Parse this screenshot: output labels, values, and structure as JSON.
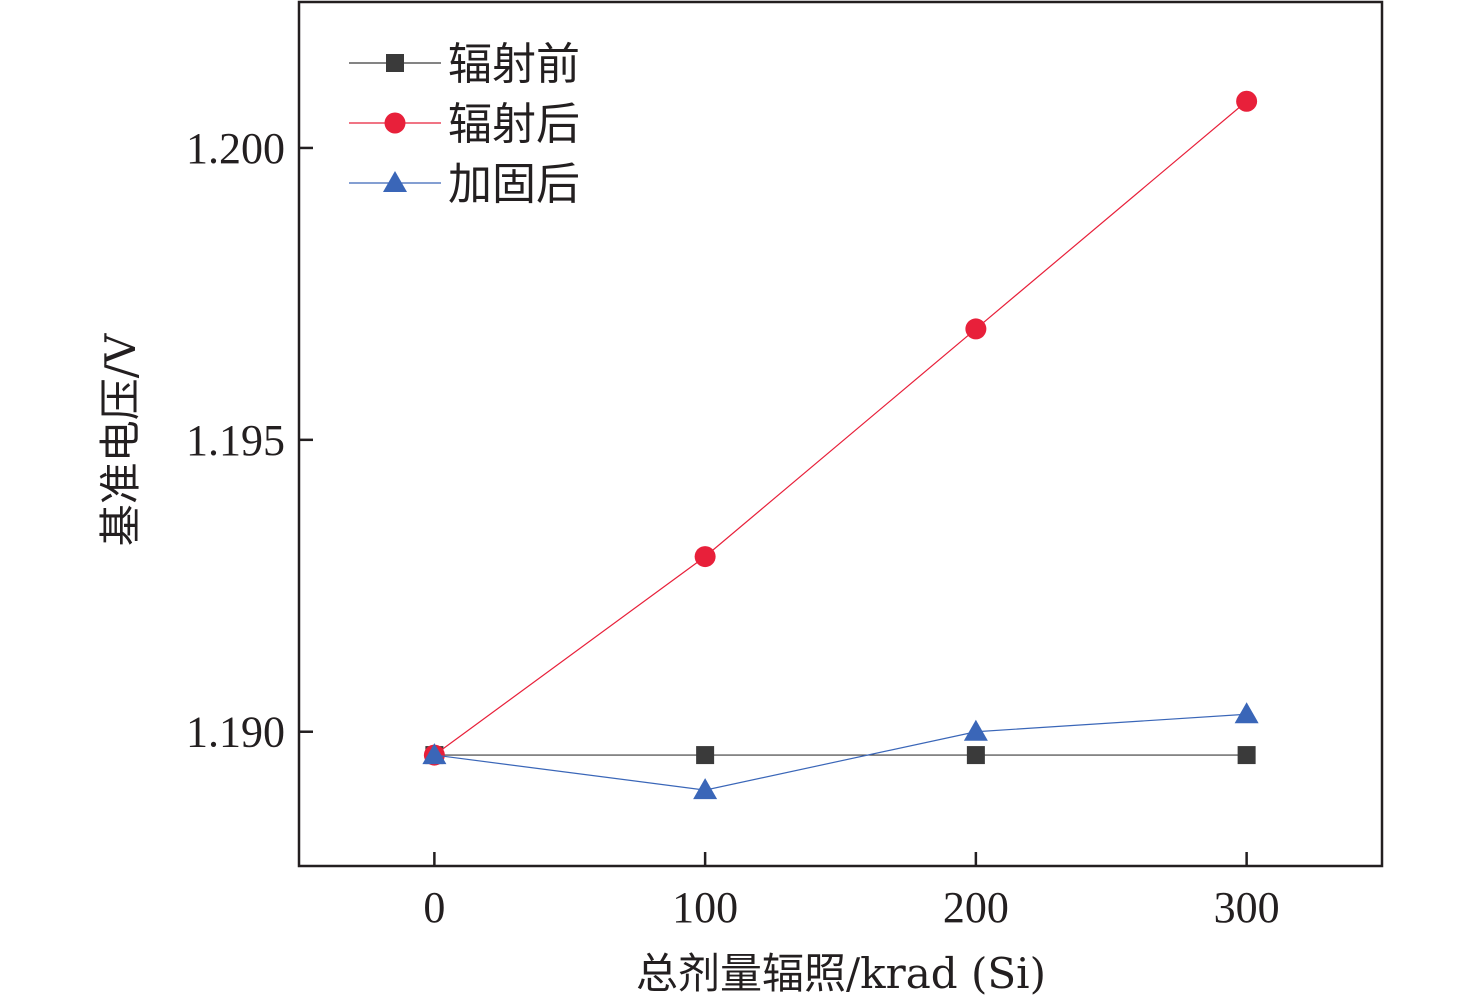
{
  "chart_data": {
    "type": "line",
    "xlabel": "总剂量辐照/krad (Si)",
    "ylabel": "基准电压/V",
    "x": [
      0,
      100,
      200,
      300
    ],
    "xticks": [
      "0",
      "100",
      "200",
      "300"
    ],
    "yticks": [
      "1.190",
      "1.195",
      "1.200"
    ],
    "yticks_values": [
      1.19,
      1.195,
      1.2
    ],
    "xlim": [
      -50,
      350
    ],
    "ylim": [
      1.1877,
      1.2025
    ],
    "grid": false,
    "legend_position": "top-left",
    "series": [
      {
        "name": "辐射前",
        "marker": "square",
        "color": "#3a3a3a",
        "values": [
          1.1896,
          1.1896,
          1.1896,
          1.1896
        ]
      },
      {
        "name": "辐射后",
        "marker": "circle",
        "color": "#e8203a",
        "values": [
          1.1896,
          1.193,
          1.1969,
          1.2008
        ]
      },
      {
        "name": "加固后",
        "marker": "triangle",
        "color": "#3a66b8",
        "values": [
          1.1896,
          1.189,
          1.19,
          1.1903
        ]
      }
    ]
  }
}
